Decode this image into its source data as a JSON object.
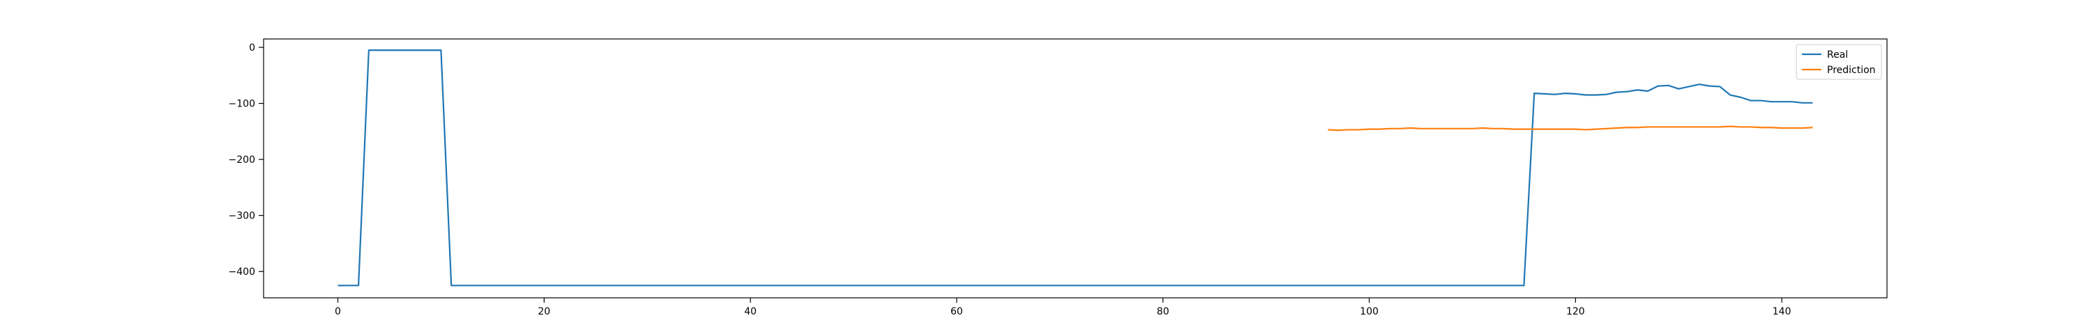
{
  "chart_data": {
    "type": "line",
    "title": "",
    "xlabel": "",
    "ylabel": "",
    "xlim": [
      -7.2,
      150.2
    ],
    "ylim": [
      -447,
      15
    ],
    "xticks": [
      0,
      20,
      40,
      60,
      80,
      100,
      120,
      140
    ],
    "yticks": [
      0,
      -100,
      -200,
      -300,
      -400
    ],
    "legend_position": "top-right",
    "series": [
      {
        "name": "Real",
        "color": "#1f77b4",
        "points": [
          [
            0,
            -425
          ],
          [
            1,
            -425
          ],
          [
            2,
            -425
          ],
          [
            3,
            -5
          ],
          [
            4,
            -5
          ],
          [
            5,
            -5
          ],
          [
            6,
            -5
          ],
          [
            7,
            -5
          ],
          [
            8,
            -5
          ],
          [
            9,
            -5
          ],
          [
            10,
            -5
          ],
          [
            11,
            -425
          ],
          [
            115,
            -425
          ],
          [
            116,
            -82
          ],
          [
            117,
            -83
          ],
          [
            118,
            -84
          ],
          [
            119,
            -82
          ],
          [
            120,
            -83
          ],
          [
            121,
            -85
          ],
          [
            122,
            -85
          ],
          [
            123,
            -84
          ],
          [
            124,
            -80
          ],
          [
            125,
            -79
          ],
          [
            126,
            -76
          ],
          [
            127,
            -78
          ],
          [
            128,
            -69
          ],
          [
            129,
            -68
          ],
          [
            130,
            -74
          ],
          [
            131,
            -70
          ],
          [
            132,
            -66
          ],
          [
            133,
            -69
          ],
          [
            134,
            -70
          ],
          [
            135,
            -85
          ],
          [
            136,
            -89
          ],
          [
            137,
            -95
          ],
          [
            138,
            -95
          ],
          [
            139,
            -97
          ],
          [
            140,
            -97
          ],
          [
            141,
            -97
          ],
          [
            142,
            -99
          ],
          [
            143,
            -99
          ]
        ]
      },
      {
        "name": "Prediction",
        "color": "#ff7f0e",
        "points": [
          [
            96,
            -147
          ],
          [
            97,
            -148
          ],
          [
            98,
            -147
          ],
          [
            99,
            -147
          ],
          [
            100,
            -146
          ],
          [
            101,
            -146
          ],
          [
            102,
            -145
          ],
          [
            103,
            -145
          ],
          [
            104,
            -144
          ],
          [
            105,
            -145
          ],
          [
            106,
            -145
          ],
          [
            107,
            -145
          ],
          [
            108,
            -145
          ],
          [
            109,
            -145
          ],
          [
            110,
            -145
          ],
          [
            111,
            -144
          ],
          [
            112,
            -145
          ],
          [
            113,
            -145
          ],
          [
            114,
            -146
          ],
          [
            115,
            -146
          ],
          [
            116,
            -146
          ],
          [
            117,
            -146
          ],
          [
            118,
            -146
          ],
          [
            119,
            -146
          ],
          [
            120,
            -146
          ],
          [
            121,
            -147
          ],
          [
            122,
            -146
          ],
          [
            123,
            -145
          ],
          [
            124,
            -144
          ],
          [
            125,
            -143
          ],
          [
            126,
            -143
          ],
          [
            127,
            -142
          ],
          [
            128,
            -142
          ],
          [
            129,
            -142
          ],
          [
            130,
            -142
          ],
          [
            131,
            -142
          ],
          [
            132,
            -142
          ],
          [
            133,
            -142
          ],
          [
            134,
            -142
          ],
          [
            135,
            -141
          ],
          [
            136,
            -142
          ],
          [
            137,
            -142
          ],
          [
            138,
            -143
          ],
          [
            139,
            -143
          ],
          [
            140,
            -144
          ],
          [
            141,
            -144
          ],
          [
            142,
            -144
          ],
          [
            143,
            -143
          ]
        ]
      }
    ]
  }
}
